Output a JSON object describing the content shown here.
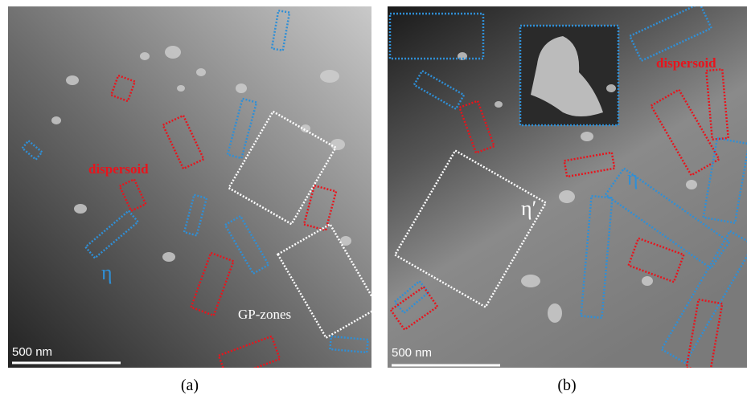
{
  "panels": [
    {
      "label": "(a)",
      "scale_bar": "500 nm",
      "annotations": {
        "dispersoid": "dispersoid",
        "eta": "η",
        "gp_zones": "GP-zones"
      }
    },
    {
      "label": "(b)",
      "scale_bar": "500 nm",
      "annotations": {
        "dispersoid": "dispersoid",
        "eta": "η",
        "eta_prime": "η′"
      }
    }
  ]
}
